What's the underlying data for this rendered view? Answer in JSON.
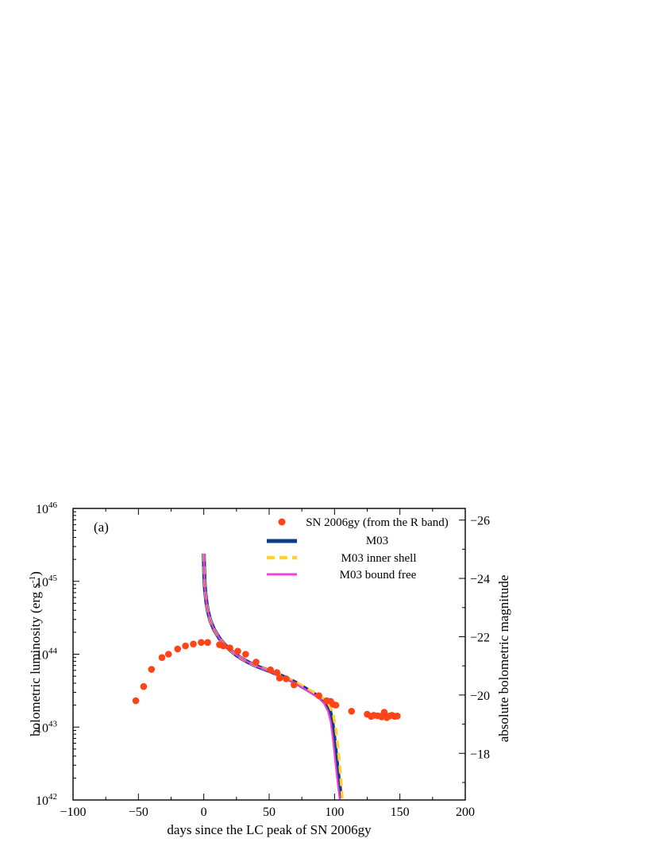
{
  "chart_data": {
    "type": "line",
    "panel_label": "(a)",
    "xlabel": "days since the LC peak of SN 2006gy",
    "ylabel": "bolometric luminosity (erg s",
    "ylabel_sup": "-1",
    "ylabel_close": ")",
    "y2label": "absolute bolometric magnitude",
    "xlim": [
      -100,
      200
    ],
    "ylim": [
      1e+42,
      1e+46
    ],
    "yscale": "log",
    "y2lim": [
      -16.4,
      -26.4
    ],
    "x_ticks": [
      "−100",
      "−50",
      "0",
      "50",
      "100",
      "150",
      "200"
    ],
    "x_tick_values": [
      -100,
      -50,
      0,
      50,
      100,
      150,
      200
    ],
    "y_ticks": [
      {
        "base": "10",
        "exp": "42"
      },
      {
        "base": "10",
        "exp": "43"
      },
      {
        "base": "10",
        "exp": "44"
      },
      {
        "base": "10",
        "exp": "45"
      },
      {
        "base": "10",
        "exp": "46"
      }
    ],
    "y_tick_values": [
      1e+42,
      1e+43,
      1e+44,
      1e+45,
      1e+46
    ],
    "y2_ticks": [
      "−26",
      "−24",
      "−22",
      "−20",
      "−18"
    ],
    "y2_tick_values": [
      -26,
      -24,
      -22,
      -20,
      -18
    ],
    "grid": false,
    "legend_position": "top-right",
    "series": [
      {
        "name": "SN 2006gy (from the R band)",
        "kind": "scatter",
        "color": "#ff4418",
        "points": [
          [
            -52,
            2.3e+43
          ],
          [
            -46,
            3.6e+43
          ],
          [
            -40,
            6.2e+43
          ],
          [
            -32,
            9e+43
          ],
          [
            -27,
            1e+44
          ],
          [
            -20,
            1.18e+44
          ],
          [
            -14,
            1.3e+44
          ],
          [
            -8,
            1.38e+44
          ],
          [
            -2,
            1.45e+44
          ],
          [
            3,
            1.45e+44
          ],
          [
            12,
            1.35e+44
          ],
          [
            15,
            1.3e+44
          ],
          [
            20,
            1.22e+44
          ],
          [
            26,
            1.1e+44
          ],
          [
            32,
            1e+44
          ],
          [
            40,
            7.8e+43
          ],
          [
            51,
            6.1e+43
          ],
          [
            56,
            5.6e+43
          ],
          [
            58,
            4.7e+43
          ],
          [
            63,
            4.6e+43
          ],
          [
            69,
            3.8e+43
          ],
          [
            88,
            2.7e+43
          ],
          [
            94,
            2.3e+43
          ],
          [
            97,
            2.25e+43
          ],
          [
            99,
            2.05e+43
          ],
          [
            101,
            2e+43
          ],
          [
            113,
            1.65e+43
          ],
          [
            125,
            1.5e+43
          ],
          [
            128,
            1.4e+43
          ],
          [
            130,
            1.45e+43
          ],
          [
            133,
            1.43e+43
          ],
          [
            136,
            1.38e+43
          ],
          [
            137,
            1.45e+43
          ],
          [
            138,
            1.6e+43
          ],
          [
            140,
            1.35e+43
          ],
          [
            142,
            1.42e+43
          ],
          [
            144,
            1.45e+43
          ],
          [
            146,
            1.4e+43
          ],
          [
            148,
            1.42e+43
          ]
        ]
      },
      {
        "name": "M03",
        "kind": "line",
        "color": "#0d3c8e",
        "points": [
          [
            0,
            2.4e+45
          ],
          [
            0.2,
            1.6e+45
          ],
          [
            0.5,
            1.05e+45
          ],
          [
            1,
            7.5e+44
          ],
          [
            2,
            5.2e+44
          ],
          [
            3,
            4e+44
          ],
          [
            5,
            2.9e+44
          ],
          [
            8,
            2.15e+44
          ],
          [
            12,
            1.65e+44
          ],
          [
            16,
            1.35e+44
          ],
          [
            20,
            1.15e+44
          ],
          [
            25,
            9.7e+43
          ],
          [
            30,
            8.5e+43
          ],
          [
            35,
            7.6e+43
          ],
          [
            40,
            6.9e+43
          ],
          [
            50,
            5.9e+43
          ],
          [
            60,
            5e+43
          ],
          [
            70,
            4.1e+43
          ],
          [
            80,
            3.2e+43
          ],
          [
            88,
            2.6e+43
          ],
          [
            93,
            2.2e+43
          ],
          [
            96,
            1.8e+43
          ],
          [
            98,
            1.3e+43
          ],
          [
            99.5,
            8e+42
          ],
          [
            101,
            4.5e+42
          ],
          [
            102.5,
            2.5e+42
          ],
          [
            104,
            1.5e+42
          ],
          [
            105,
            1.05e+42
          ]
        ]
      },
      {
        "name": "M03 inner shell",
        "kind": "dashed",
        "color": "#ffd22e",
        "points": [
          [
            0,
            2.4e+45
          ],
          [
            0.2,
            1.6e+45
          ],
          [
            0.5,
            1.05e+45
          ],
          [
            1,
            7.5e+44
          ],
          [
            2,
            5.2e+44
          ],
          [
            3,
            4e+44
          ],
          [
            5,
            2.9e+44
          ],
          [
            8,
            2.15e+44
          ],
          [
            12,
            1.65e+44
          ],
          [
            16,
            1.35e+44
          ],
          [
            20,
            1.15e+44
          ],
          [
            25,
            9.7e+43
          ],
          [
            30,
            8.5e+43
          ],
          [
            35,
            7.6e+43
          ],
          [
            40,
            6.9e+43
          ],
          [
            50,
            5.95e+43
          ],
          [
            60,
            5.05e+43
          ],
          [
            70,
            4.2e+43
          ],
          [
            80,
            3.3e+43
          ],
          [
            88,
            2.75e+43
          ],
          [
            93,
            2.35e+43
          ],
          [
            96,
            2e+43
          ],
          [
            99,
            1.5e+43
          ],
          [
            101,
            9.5e+42
          ],
          [
            102.5,
            5.5e+42
          ],
          [
            104,
            3e+42
          ],
          [
            105,
            1.8e+42
          ],
          [
            106,
            1.05e+42
          ]
        ]
      },
      {
        "name": "M03 bound free",
        "kind": "line",
        "color": "#f240d8",
        "points": [
          [
            0,
            2.4e+45
          ],
          [
            0.2,
            1.6e+45
          ],
          [
            0.5,
            1.05e+45
          ],
          [
            1,
            7.5e+44
          ],
          [
            2,
            5.2e+44
          ],
          [
            3,
            4e+44
          ],
          [
            5,
            2.9e+44
          ],
          [
            8,
            2.15e+44
          ],
          [
            12,
            1.65e+44
          ],
          [
            16,
            1.35e+44
          ],
          [
            20,
            1.15e+44
          ],
          [
            25,
            9.7e+43
          ],
          [
            30,
            8.5e+43
          ],
          [
            35,
            7.6e+43
          ],
          [
            40,
            6.9e+43
          ],
          [
            50,
            5.85e+43
          ],
          [
            60,
            4.9e+43
          ],
          [
            70,
            4e+43
          ],
          [
            80,
            3.1e+43
          ],
          [
            88,
            2.5e+43
          ],
          [
            92,
            2.1e+43
          ],
          [
            95,
            1.65e+43
          ],
          [
            97,
            1.2e+43
          ],
          [
            98.5,
            7.5e+42
          ],
          [
            100,
            4.2e+42
          ],
          [
            101.5,
            2.4e+42
          ],
          [
            103,
            1.4e+42
          ],
          [
            104,
            1.02e+42
          ]
        ]
      }
    ]
  }
}
